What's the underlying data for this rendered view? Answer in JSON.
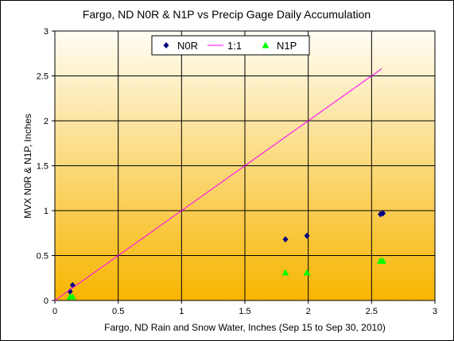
{
  "chart_data": {
    "type": "scatter",
    "title": "Fargo, ND N0R & N1P vs Precip Gage Daily Accumulation",
    "xlabel": "Fargo, ND Rain and Snow Water, Inches (Sep 15 to Sep 30, 2010)",
    "ylabel": "MVX N0R & N1P, Inches",
    "xlim": [
      0,
      3
    ],
    "ylim": [
      0,
      3
    ],
    "x_ticks": [
      "0",
      "0.5",
      "1",
      "1.5",
      "2",
      "2.5",
      "3"
    ],
    "y_ticks": [
      "0",
      "0.5",
      "1",
      "1.5",
      "2",
      "2.5",
      "3"
    ],
    "x_tick_values": [
      0,
      0.5,
      1,
      1.5,
      2,
      2.5,
      3
    ],
    "y_tick_values": [
      0,
      0.5,
      1,
      1.5,
      2,
      2.5,
      3
    ],
    "grid": true,
    "legend_position": "top",
    "background_gradient": [
      "#fffdf5",
      "#f7b500"
    ],
    "series": [
      {
        "name": "N0R",
        "marker": "diamond",
        "color": "#000080",
        "points": [
          [
            0.12,
            0.1
          ],
          [
            0.14,
            0.17
          ],
          [
            1.82,
            0.68
          ],
          [
            1.99,
            0.72
          ],
          [
            2.57,
            0.96
          ],
          [
            2.59,
            0.97
          ]
        ]
      },
      {
        "name": "1:1",
        "marker": "line",
        "color": "#ff00ff",
        "points": [
          [
            0,
            0
          ],
          [
            2.58,
            2.58
          ]
        ]
      },
      {
        "name": "N1P",
        "marker": "triangle",
        "color": "#00ff00",
        "points": [
          [
            0.12,
            0.04
          ],
          [
            0.14,
            0.04
          ],
          [
            1.82,
            0.31
          ],
          [
            1.99,
            0.31
          ],
          [
            2.57,
            0.44
          ],
          [
            2.59,
            0.44
          ]
        ]
      }
    ]
  }
}
